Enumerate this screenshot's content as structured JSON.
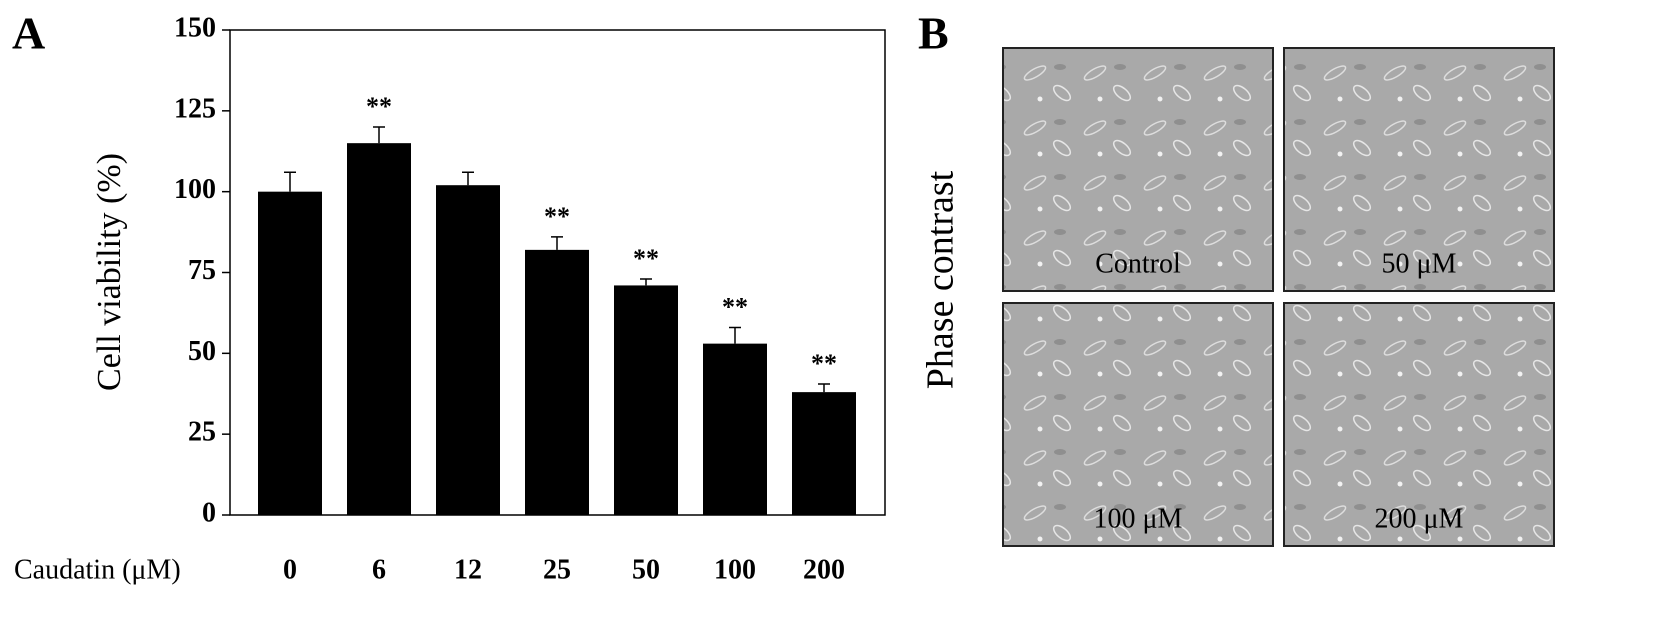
{
  "chart_data": {
    "type": "bar",
    "panel_label": "A",
    "ylabel": "Cell viability (%)",
    "xlabel": "Caudatin (μM)",
    "categories": [
      "0",
      "6",
      "12",
      "25",
      "50",
      "100",
      "200"
    ],
    "values": [
      100,
      115,
      102,
      82,
      71,
      53,
      38
    ],
    "errors": [
      6,
      5,
      4,
      4,
      2,
      5,
      2.5
    ],
    "significance": [
      null,
      "**",
      null,
      "**",
      "**",
      "**",
      "**"
    ],
    "color": "#000000",
    "ylim": [
      0,
      150
    ],
    "yticks": [
      0,
      25,
      50,
      75,
      100,
      125,
      150
    ]
  },
  "image_panel": {
    "panel_label": "B",
    "ylabel": "Phase contrast",
    "images": [
      {
        "label": "Control"
      },
      {
        "label": "50 μM"
      },
      {
        "label": "100 μM"
      },
      {
        "label": "200 μM"
      }
    ]
  }
}
